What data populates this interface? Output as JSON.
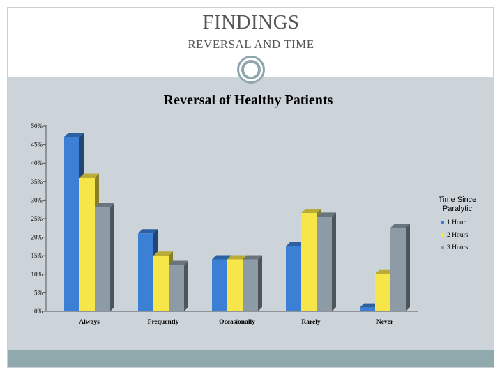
{
  "slide": {
    "title": "FINDINGS",
    "subtitle": "REVERSAL AND TIME"
  },
  "colors": {
    "panel": "#ccd4da",
    "band": "#8fa9ad",
    "ornament": "#8fa6ad"
  },
  "chart_data": {
    "type": "bar",
    "title": "Reversal of Healthy Patients",
    "xlabel": "",
    "ylabel": "",
    "ylim": [
      0,
      50
    ],
    "yticks": [
      0,
      5,
      10,
      15,
      20,
      25,
      30,
      35,
      40,
      45,
      50
    ],
    "ytick_labels": [
      "0%",
      "5%",
      "10%",
      "15%",
      "20%",
      "25%",
      "30%",
      "35%",
      "40%",
      "45%",
      "50%"
    ],
    "categories": [
      "Always",
      "Frequently",
      "Occasionally",
      "Rarely",
      "Never"
    ],
    "legend_title": "Time Since Paralytic",
    "legend_position": "right",
    "grid": false,
    "style": "3d",
    "series": [
      {
        "name": "1 Hour",
        "color": "#3c80d6",
        "values": [
          47,
          21,
          14,
          17.5,
          1
        ]
      },
      {
        "name": "2 Hours",
        "color": "#f7e64a",
        "values": [
          36,
          15,
          14,
          26.5,
          10
        ]
      },
      {
        "name": "3 Hours",
        "color": "#8c9ba6",
        "values": [
          28,
          12.5,
          14,
          25.5,
          22.5
        ]
      }
    ]
  }
}
